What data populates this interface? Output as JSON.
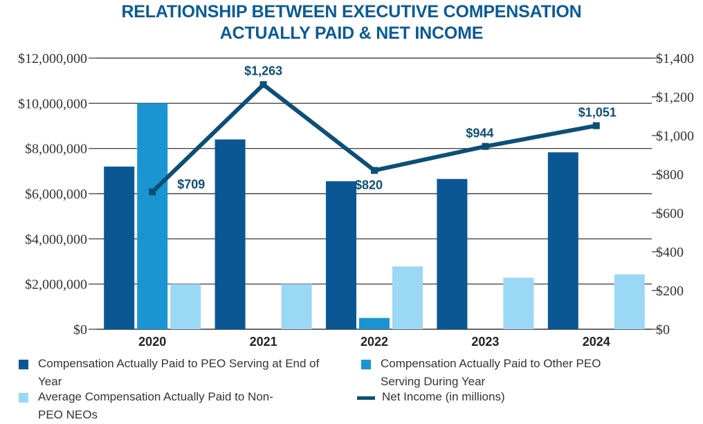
{
  "chart_data": {
    "type": "bar",
    "title_lines": [
      "RELATIONSHIP BETWEEN EXECUTIVE COMPENSATION",
      "ACTUALLY PAID & NET INCOME"
    ],
    "categories": [
      "2020",
      "2021",
      "2022",
      "2023",
      "2024"
    ],
    "left_axis": {
      "min": 0,
      "max": 12000000,
      "step": 2000000,
      "tick_labels": [
        "$0",
        "$2,000,000",
        "$4,000,000",
        "$6,000,000",
        "$8,000,000",
        "$10,000,000",
        "$12,000,000"
      ]
    },
    "right_axis": {
      "min": 0,
      "max": 1400,
      "step": 200,
      "tick_labels": [
        "$0",
        "$200",
        "$400",
        "$600",
        "$800",
        "$1,000",
        "$1,200",
        "$1,400"
      ]
    },
    "series": [
      {
        "name": "Compensation Actually Paid to PEO Serving at End of Year",
        "kind": "bar",
        "axis": "left",
        "color": "#0b5794",
        "values": [
          7200000,
          8400000,
          6550000,
          6650000,
          7830000
        ]
      },
      {
        "name": "Compensation Actually Paid to Other PEO Serving During Year",
        "kind": "bar",
        "axis": "left",
        "color": "#1b95d2",
        "values": [
          10000000,
          null,
          500000,
          null,
          null
        ]
      },
      {
        "name": "Average Compensation Actually Paid to Non-PEO NEOs",
        "kind": "bar",
        "axis": "left",
        "color": "#9bd8f5",
        "values": [
          2000000,
          2000000,
          2780000,
          2280000,
          2430000
        ]
      },
      {
        "name": "Net Income (in millions)",
        "kind": "line",
        "axis": "right",
        "color": "#0d4f75",
        "values": [
          709,
          1263,
          820,
          944,
          1051
        ],
        "labels": [
          "$709",
          "$1,263",
          "$820",
          "$944",
          "$1,051"
        ]
      }
    ],
    "legend": [
      "Compensation Actually Paid to PEO Serving at End of Year",
      "Compensation Actually Paid to Other PEO Serving During Year",
      "Average Compensation Actually Paid to Non-PEO NEOs",
      "Net Income (in millions)"
    ],
    "gridlines": true,
    "legend_position": "bottom"
  }
}
